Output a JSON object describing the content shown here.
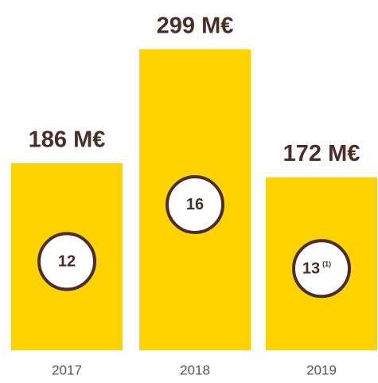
{
  "chart_data": {
    "type": "bar",
    "categories": [
      "2017",
      "2018",
      "2019"
    ],
    "values": [
      186,
      299,
      172
    ],
    "value_labels": [
      "186 M€",
      "299 M€",
      "172 M€"
    ],
    "color": "#ffd200",
    "circles": {
      "values": [
        12,
        16,
        13
      ],
      "footnotes": [
        null,
        null,
        "(1)"
      ]
    }
  }
}
